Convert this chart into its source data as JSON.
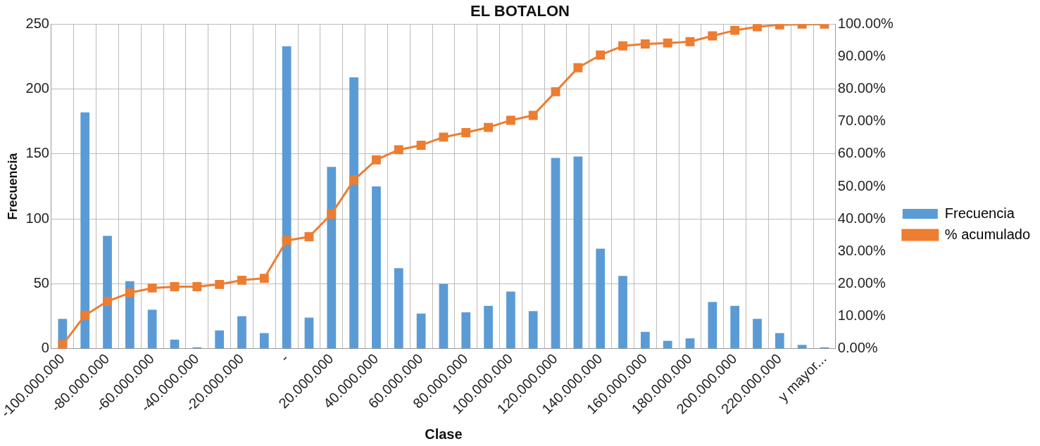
{
  "chart_data": {
    "type": "bar",
    "title": "EL BOTALON",
    "xlabel": "Clase",
    "ylabel": "Frecuencia",
    "categories": [
      "-100.000.000",
      null,
      "-80.000.000",
      null,
      "-60.000.000",
      null,
      "-40.000.000",
      null,
      "-20.000.000",
      null,
      "-",
      null,
      "20.000.000",
      null,
      "40.000.000",
      null,
      "60.000.000",
      null,
      "80.000.000",
      null,
      "100.000.000",
      null,
      "120.000.000",
      null,
      "140.000.000",
      null,
      "160.000.000",
      null,
      "180.000.000",
      null,
      "200.000.000",
      null,
      "220.000.000",
      null,
      "y mayor..."
    ],
    "series": [
      {
        "name": "Frecuencia",
        "color": "#5b9bd5",
        "values": [
          23,
          182,
          87,
          52,
          30,
          7,
          1,
          14,
          25,
          12,
          233,
          24,
          140,
          209,
          125,
          62,
          27,
          50,
          28,
          33,
          44,
          29,
          147,
          148,
          77,
          56,
          13,
          6,
          8,
          36,
          33,
          23,
          12,
          3,
          1
        ]
      },
      {
        "name": "% acumulado",
        "type": "line",
        "axis": "y2",
        "color": "#ed7d31",
        "values": [
          1.2,
          10.3,
          14.6,
          17.2,
          18.7,
          19.1,
          19.1,
          19.8,
          21.1,
          21.7,
          33.3,
          34.5,
          41.5,
          52.0,
          58.2,
          61.3,
          62.7,
          65.2,
          66.6,
          68.2,
          70.4,
          71.9,
          79.2,
          86.6,
          90.5,
          93.3,
          93.9,
          94.2,
          94.6,
          96.4,
          98.1,
          99.2,
          99.8,
          100,
          100
        ]
      }
    ],
    "ylim": [
      0,
      250
    ],
    "yticks": [
      0,
      50,
      100,
      150,
      200,
      250
    ],
    "y2lim": [
      0,
      100
    ],
    "y2ticks": [
      {
        "value": 0,
        "label": "0.00%"
      },
      {
        "value": 10,
        "label": "10.00%"
      },
      {
        "value": 20,
        "label": "20.00%"
      },
      {
        "value": 30,
        "label": "30.00%"
      },
      {
        "value": 40,
        "label": "40.00%"
      },
      {
        "value": 50,
        "label": "50.00%"
      },
      {
        "value": 60,
        "label": "60.00%"
      },
      {
        "value": 70,
        "label": "70.00%"
      },
      {
        "value": 80,
        "label": "80.00%"
      },
      {
        "value": 90,
        "label": "90.00%"
      },
      {
        "value": 100,
        "label": "100.00%"
      }
    ],
    "grid": true,
    "legend": "right",
    "marker": "square",
    "line_style": "solid"
  }
}
